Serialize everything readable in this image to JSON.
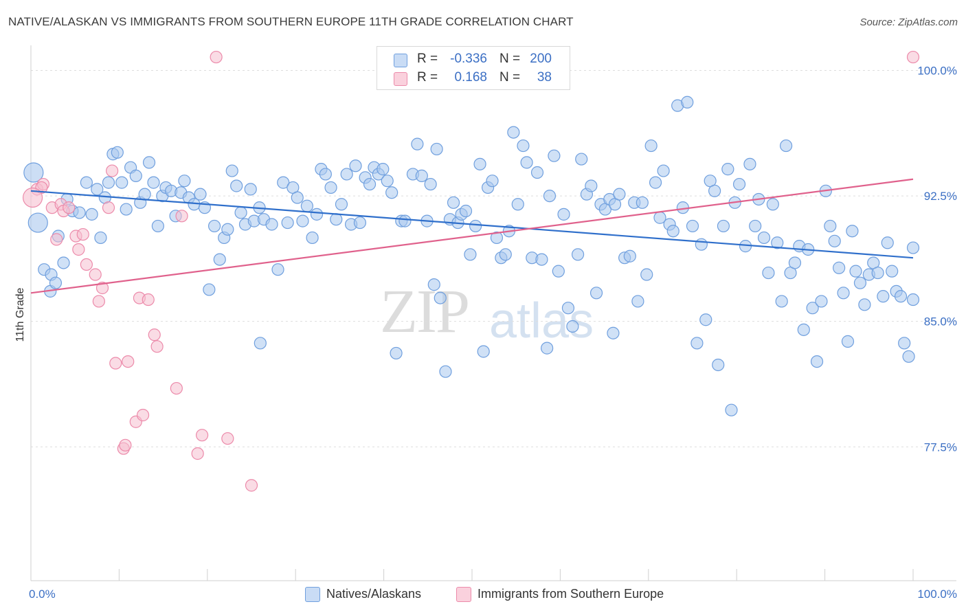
{
  "chart_data": {
    "type": "scatter",
    "title": "NATIVE/ALASKAN VS IMMIGRANTS FROM SOUTHERN EUROPE 11TH GRADE CORRELATION CHART",
    "source": "Source: ZipAtlas.com",
    "xlabel": "",
    "ylabel": "11th Grade",
    "xlim": [
      0,
      100
    ],
    "ylim": [
      69.5,
      101.5
    ],
    "x_tick_labels": {
      "left": "0.0%",
      "right": "100.0%"
    },
    "y_ticks": [
      {
        "value": 100.0,
        "label": "100.0%"
      },
      {
        "value": 92.5,
        "label": "92.5%"
      },
      {
        "value": 85.0,
        "label": "85.0%"
      },
      {
        "value": 77.5,
        "label": "77.5%"
      }
    ],
    "grid": true,
    "legend_position": "top-center",
    "watermark": {
      "zip": "ZIP",
      "atlas": "atlas"
    },
    "series": [
      {
        "name": "Natives/Alaskans",
        "color": "#6f9fde",
        "fill": "#aac8ef",
        "line_color": "#2f6fcb",
        "R": "-0.336",
        "N": "200",
        "trend": {
          "x0": 0,
          "y0": 92.8,
          "x1": 100,
          "y1": 88.8
        },
        "points": [
          [
            1.5,
            88.1
          ],
          [
            2.3,
            87.8
          ],
          [
            2.2,
            86.8
          ],
          [
            2.8,
            87.3
          ],
          [
            3.7,
            88.5
          ],
          [
            3.1,
            90.1
          ],
          [
            4.1,
            92.3
          ],
          [
            4.7,
            91.6
          ],
          [
            5.5,
            91.5
          ],
          [
            6.3,
            93.3
          ],
          [
            6.9,
            91.4
          ],
          [
            7.5,
            92.9
          ],
          [
            7.9,
            90.0
          ],
          [
            8.4,
            92.4
          ],
          [
            8.8,
            93.3
          ],
          [
            9.3,
            95.0
          ],
          [
            9.8,
            95.1
          ],
          [
            10.3,
            93.3
          ],
          [
            10.8,
            91.7
          ],
          [
            11.3,
            94.2
          ],
          [
            11.9,
            93.7
          ],
          [
            12.4,
            92.1
          ],
          [
            12.9,
            92.6
          ],
          [
            13.4,
            94.5
          ],
          [
            13.9,
            93.3
          ],
          [
            14.4,
            90.7
          ],
          [
            14.9,
            92.5
          ],
          [
            15.3,
            93.0
          ],
          [
            15.9,
            92.8
          ],
          [
            16.4,
            91.3
          ],
          [
            17.0,
            92.7
          ],
          [
            17.4,
            93.4
          ],
          [
            17.9,
            92.4
          ],
          [
            18.5,
            92.0
          ],
          [
            19.2,
            92.6
          ],
          [
            19.7,
            91.8
          ],
          [
            20.2,
            86.9
          ],
          [
            20.8,
            90.7
          ],
          [
            21.4,
            88.7
          ],
          [
            21.9,
            90.0
          ],
          [
            22.3,
            90.5
          ],
          [
            22.8,
            94.0
          ],
          [
            23.3,
            93.1
          ],
          [
            23.8,
            91.5
          ],
          [
            24.3,
            90.8
          ],
          [
            24.9,
            92.9
          ],
          [
            25.3,
            91.0
          ],
          [
            25.9,
            91.8
          ],
          [
            26.4,
            91.1
          ],
          [
            26.0,
            83.7
          ],
          [
            27.3,
            90.8
          ],
          [
            28.0,
            88.1
          ],
          [
            28.6,
            93.3
          ],
          [
            29.1,
            90.9
          ],
          [
            29.7,
            93.0
          ],
          [
            30.2,
            92.4
          ],
          [
            30.8,
            91.0
          ],
          [
            31.3,
            91.9
          ],
          [
            31.9,
            90.0
          ],
          [
            32.4,
            91.4
          ],
          [
            32.9,
            94.1
          ],
          [
            33.4,
            93.8
          ],
          [
            34.0,
            93.0
          ],
          [
            34.6,
            91.1
          ],
          [
            35.2,
            92.0
          ],
          [
            35.8,
            93.8
          ],
          [
            36.3,
            90.8
          ],
          [
            36.8,
            94.3
          ],
          [
            37.3,
            90.9
          ],
          [
            37.9,
            93.6
          ],
          [
            38.4,
            93.2
          ],
          [
            38.9,
            94.2
          ],
          [
            39.4,
            93.8
          ],
          [
            39.9,
            94.1
          ],
          [
            40.4,
            93.4
          ],
          [
            40.9,
            92.7
          ],
          [
            41.4,
            83.1
          ],
          [
            42.0,
            91.0
          ],
          [
            42.4,
            91.0
          ],
          [
            43.3,
            93.8
          ],
          [
            43.8,
            95.6
          ],
          [
            44.3,
            93.7
          ],
          [
            44.9,
            91.0
          ],
          [
            45.3,
            93.2
          ],
          [
            45.7,
            87.2
          ],
          [
            46.0,
            95.3
          ],
          [
            46.4,
            86.4
          ],
          [
            47.0,
            82.0
          ],
          [
            47.5,
            91.1
          ],
          [
            47.9,
            92.1
          ],
          [
            48.4,
            90.9
          ],
          [
            48.8,
            91.4
          ],
          [
            49.3,
            91.6
          ],
          [
            49.8,
            89.0
          ],
          [
            50.4,
            90.7
          ],
          [
            50.9,
            94.4
          ],
          [
            51.3,
            83.2
          ],
          [
            51.8,
            93.0
          ],
          [
            52.3,
            93.4
          ],
          [
            52.8,
            90.0
          ],
          [
            53.3,
            88.8
          ],
          [
            53.8,
            89.0
          ],
          [
            54.2,
            90.4
          ],
          [
            54.7,
            96.3
          ],
          [
            55.2,
            92.0
          ],
          [
            55.8,
            95.5
          ],
          [
            56.2,
            94.5
          ],
          [
            56.8,
            88.8
          ],
          [
            57.4,
            93.9
          ],
          [
            57.9,
            88.7
          ],
          [
            58.5,
            83.4
          ],
          [
            58.8,
            92.5
          ],
          [
            59.3,
            94.9
          ],
          [
            59.8,
            88.0
          ],
          [
            60.4,
            91.4
          ],
          [
            60.9,
            85.8
          ],
          [
            61.4,
            84.7
          ],
          [
            62.0,
            89.0
          ],
          [
            62.4,
            94.7
          ],
          [
            63.0,
            92.6
          ],
          [
            63.5,
            93.1
          ],
          [
            64.1,
            86.7
          ],
          [
            64.6,
            92.0
          ],
          [
            65.1,
            91.7
          ],
          [
            65.6,
            92.3
          ],
          [
            66.0,
            84.3
          ],
          [
            66.2,
            92.0
          ],
          [
            66.7,
            92.6
          ],
          [
            67.3,
            88.8
          ],
          [
            67.9,
            88.9
          ],
          [
            68.4,
            92.1
          ],
          [
            68.8,
            86.2
          ],
          [
            69.3,
            92.1
          ],
          [
            69.8,
            87.8
          ],
          [
            70.3,
            95.5
          ],
          [
            70.8,
            93.3
          ],
          [
            71.3,
            91.2
          ],
          [
            71.7,
            94.0
          ],
          [
            72.4,
            90.8
          ],
          [
            72.8,
            90.4
          ],
          [
            73.3,
            97.9
          ],
          [
            73.9,
            91.8
          ],
          [
            74.4,
            98.1
          ],
          [
            75.0,
            90.7
          ],
          [
            75.5,
            83.7
          ],
          [
            76.0,
            89.6
          ],
          [
            76.5,
            85.1
          ],
          [
            77.0,
            93.4
          ],
          [
            77.5,
            92.8
          ],
          [
            77.9,
            82.4
          ],
          [
            78.5,
            90.7
          ],
          [
            79.0,
            94.1
          ],
          [
            79.4,
            79.7
          ],
          [
            79.8,
            92.1
          ],
          [
            80.3,
            93.2
          ],
          [
            81.0,
            89.5
          ],
          [
            81.5,
            94.4
          ],
          [
            82.1,
            90.7
          ],
          [
            82.5,
            92.3
          ],
          [
            83.1,
            90.0
          ],
          [
            83.6,
            87.9
          ],
          [
            84.1,
            92.0
          ],
          [
            84.6,
            89.7
          ],
          [
            85.1,
            86.2
          ],
          [
            85.6,
            95.5
          ],
          [
            86.1,
            87.9
          ],
          [
            86.6,
            88.5
          ],
          [
            87.1,
            89.5
          ],
          [
            87.6,
            84.5
          ],
          [
            88.1,
            89.3
          ],
          [
            88.6,
            85.8
          ],
          [
            89.1,
            82.6
          ],
          [
            89.6,
            86.2
          ],
          [
            90.1,
            92.8
          ],
          [
            90.6,
            90.7
          ],
          [
            91.1,
            89.8
          ],
          [
            91.6,
            88.2
          ],
          [
            92.1,
            86.7
          ],
          [
            92.6,
            83.8
          ],
          [
            93.1,
            90.4
          ],
          [
            93.5,
            88.0
          ],
          [
            94.0,
            87.3
          ],
          [
            94.5,
            86.0
          ],
          [
            95.0,
            87.8
          ],
          [
            95.5,
            88.5
          ],
          [
            96.0,
            87.9
          ],
          [
            96.6,
            86.5
          ],
          [
            97.1,
            89.7
          ],
          [
            97.6,
            88.0
          ],
          [
            98.1,
            86.8
          ],
          [
            98.6,
            86.5
          ],
          [
            99.0,
            83.7
          ],
          [
            99.5,
            82.9
          ],
          [
            100.0,
            86.3
          ],
          [
            100.0,
            89.4
          ]
        ],
        "big_points": [
          [
            0.3,
            93.9
          ],
          [
            0.8,
            90.9
          ]
        ]
      },
      {
        "name": "Immigrants from Southern Europe",
        "color": "#ec8aaa",
        "fill": "#f6bfd0",
        "line_color": "#e0618c",
        "R": "0.168",
        "N": "38",
        "trend": {
          "x0": 0,
          "y0": 86.7,
          "x1": 100,
          "y1": 93.5
        },
        "points": [
          [
            0.7,
            92.9
          ],
          [
            1.4,
            93.2
          ],
          [
            1.2,
            93.0
          ],
          [
            2.4,
            91.8
          ],
          [
            2.9,
            89.9
          ],
          [
            3.4,
            92.0
          ],
          [
            3.7,
            91.6
          ],
          [
            4.3,
            91.8
          ],
          [
            5.1,
            90.1
          ],
          [
            5.4,
            89.3
          ],
          [
            5.9,
            90.2
          ],
          [
            6.3,
            88.4
          ],
          [
            7.3,
            87.8
          ],
          [
            7.7,
            86.2
          ],
          [
            8.1,
            87.0
          ],
          [
            8.8,
            91.8
          ],
          [
            9.2,
            94.0
          ],
          [
            9.6,
            82.5
          ],
          [
            10.5,
            77.4
          ],
          [
            10.7,
            77.6
          ],
          [
            11.0,
            82.6
          ],
          [
            11.9,
            79.0
          ],
          [
            12.3,
            86.4
          ],
          [
            12.7,
            79.4
          ],
          [
            13.3,
            86.3
          ],
          [
            14.0,
            84.2
          ],
          [
            14.3,
            83.5
          ],
          [
            16.5,
            81.0
          ],
          [
            17.1,
            91.3
          ],
          [
            18.9,
            77.1
          ],
          [
            19.4,
            78.2
          ],
          [
            21.0,
            100.8
          ],
          [
            22.3,
            78.0
          ],
          [
            25.0,
            75.2
          ],
          [
            100.0,
            100.8
          ]
        ],
        "big_points": [
          [
            0.2,
            92.4
          ]
        ]
      }
    ]
  }
}
